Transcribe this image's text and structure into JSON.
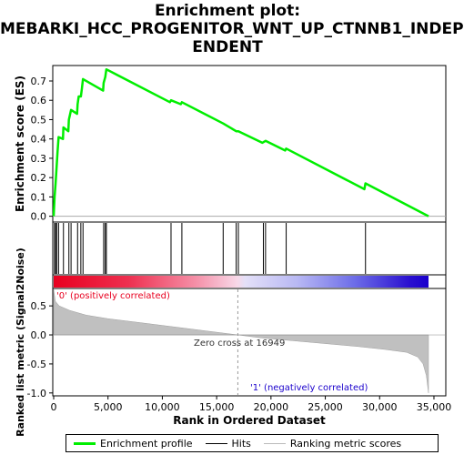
{
  "title_lines": [
    "Enrichment plot:",
    "MEBARKI_HCC_PROGENITOR_WNT_UP_CTNNB1_INDEP",
    "ENDENT"
  ],
  "es_ylabel": "Enrichment score (ES)",
  "metric_ylabel": "Ranked list metric (Signal2Noise)",
  "xlabel": "Rank in Ordered Dataset",
  "pos_label": "'0' (positively correlated)",
  "neg_label": "'1' (negatively correlated)",
  "zero_cross_label": "Zero cross at 16949",
  "legend": {
    "enrichment_profile": "Enrichment profile",
    "hits": "Hits",
    "ranking_metric": "Ranking metric scores"
  },
  "colors": {
    "es_line": "#00ee00",
    "pos_end": "#e8001f",
    "neg_end": "#1a00cc"
  },
  "chart_data": {
    "type": "line",
    "x_range": [
      0,
      34500
    ],
    "x_ticks": [
      "0",
      "5,000",
      "10,000",
      "15,000",
      "20,000",
      "25,000",
      "30,000",
      "35,000"
    ],
    "x_tick_values": [
      0,
      5000,
      10000,
      15000,
      20000,
      25000,
      30000,
      35000
    ],
    "es_ylim": [
      -0.03,
      0.78
    ],
    "es_ticks": [
      "0.0",
      "0.1",
      "0.2",
      "0.3",
      "0.4",
      "0.5",
      "0.6",
      "0.7"
    ],
    "es_tick_values": [
      0.0,
      0.1,
      0.2,
      0.3,
      0.4,
      0.5,
      0.6,
      0.7
    ],
    "metric_ylim": [
      -1.05,
      0.8
    ],
    "metric_ticks": [
      "0.5",
      "0.0",
      "-0.5",
      "-1.0"
    ],
    "metric_tick_values": [
      0.5,
      0.0,
      -0.5,
      -1.0
    ],
    "zero_cross": 16949,
    "hits": [
      80,
      180,
      280,
      450,
      900,
      1400,
      1600,
      2200,
      2500,
      2700,
      4600,
      4750,
      4850,
      10800,
      11800,
      15600,
      16800,
      17000,
      19300,
      19500,
      21400,
      28700
    ],
    "es_profile": [
      [
        0,
        0.0
      ],
      [
        80,
        0.1
      ],
      [
        180,
        0.17
      ],
      [
        280,
        0.26
      ],
      [
        350,
        0.33
      ],
      [
        450,
        0.41
      ],
      [
        850,
        0.4
      ],
      [
        900,
        0.46
      ],
      [
        1350,
        0.44
      ],
      [
        1400,
        0.5
      ],
      [
        1600,
        0.55
      ],
      [
        2150,
        0.53
      ],
      [
        2200,
        0.58
      ],
      [
        2300,
        0.62
      ],
      [
        2500,
        0.62
      ],
      [
        2600,
        0.66
      ],
      [
        2700,
        0.71
      ],
      [
        4550,
        0.65
      ],
      [
        4600,
        0.69
      ],
      [
        4750,
        0.72
      ],
      [
        4850,
        0.76
      ],
      [
        10700,
        0.59
      ],
      [
        10800,
        0.6
      ],
      [
        11700,
        0.58
      ],
      [
        11800,
        0.59
      ],
      [
        15600,
        0.48
      ],
      [
        16800,
        0.44
      ],
      [
        17000,
        0.44
      ],
      [
        19200,
        0.38
      ],
      [
        19500,
        0.39
      ],
      [
        21300,
        0.34
      ],
      [
        21400,
        0.35
      ],
      [
        28600,
        0.14
      ],
      [
        28700,
        0.17
      ],
      [
        34500,
        0.0
      ]
    ],
    "metric_profile": [
      [
        0,
        0.78
      ],
      [
        150,
        0.58
      ],
      [
        500,
        0.5
      ],
      [
        1500,
        0.42
      ],
      [
        3000,
        0.34
      ],
      [
        5000,
        0.28
      ],
      [
        8000,
        0.21
      ],
      [
        11000,
        0.14
      ],
      [
        14000,
        0.07
      ],
      [
        16949,
        0.0
      ],
      [
        19000,
        -0.05
      ],
      [
        22000,
        -0.1
      ],
      [
        25000,
        -0.15
      ],
      [
        28000,
        -0.2
      ],
      [
        30500,
        -0.25
      ],
      [
        32500,
        -0.3
      ],
      [
        33500,
        -0.38
      ],
      [
        34000,
        -0.5
      ],
      [
        34300,
        -0.7
      ],
      [
        34500,
        -1.0
      ]
    ]
  }
}
